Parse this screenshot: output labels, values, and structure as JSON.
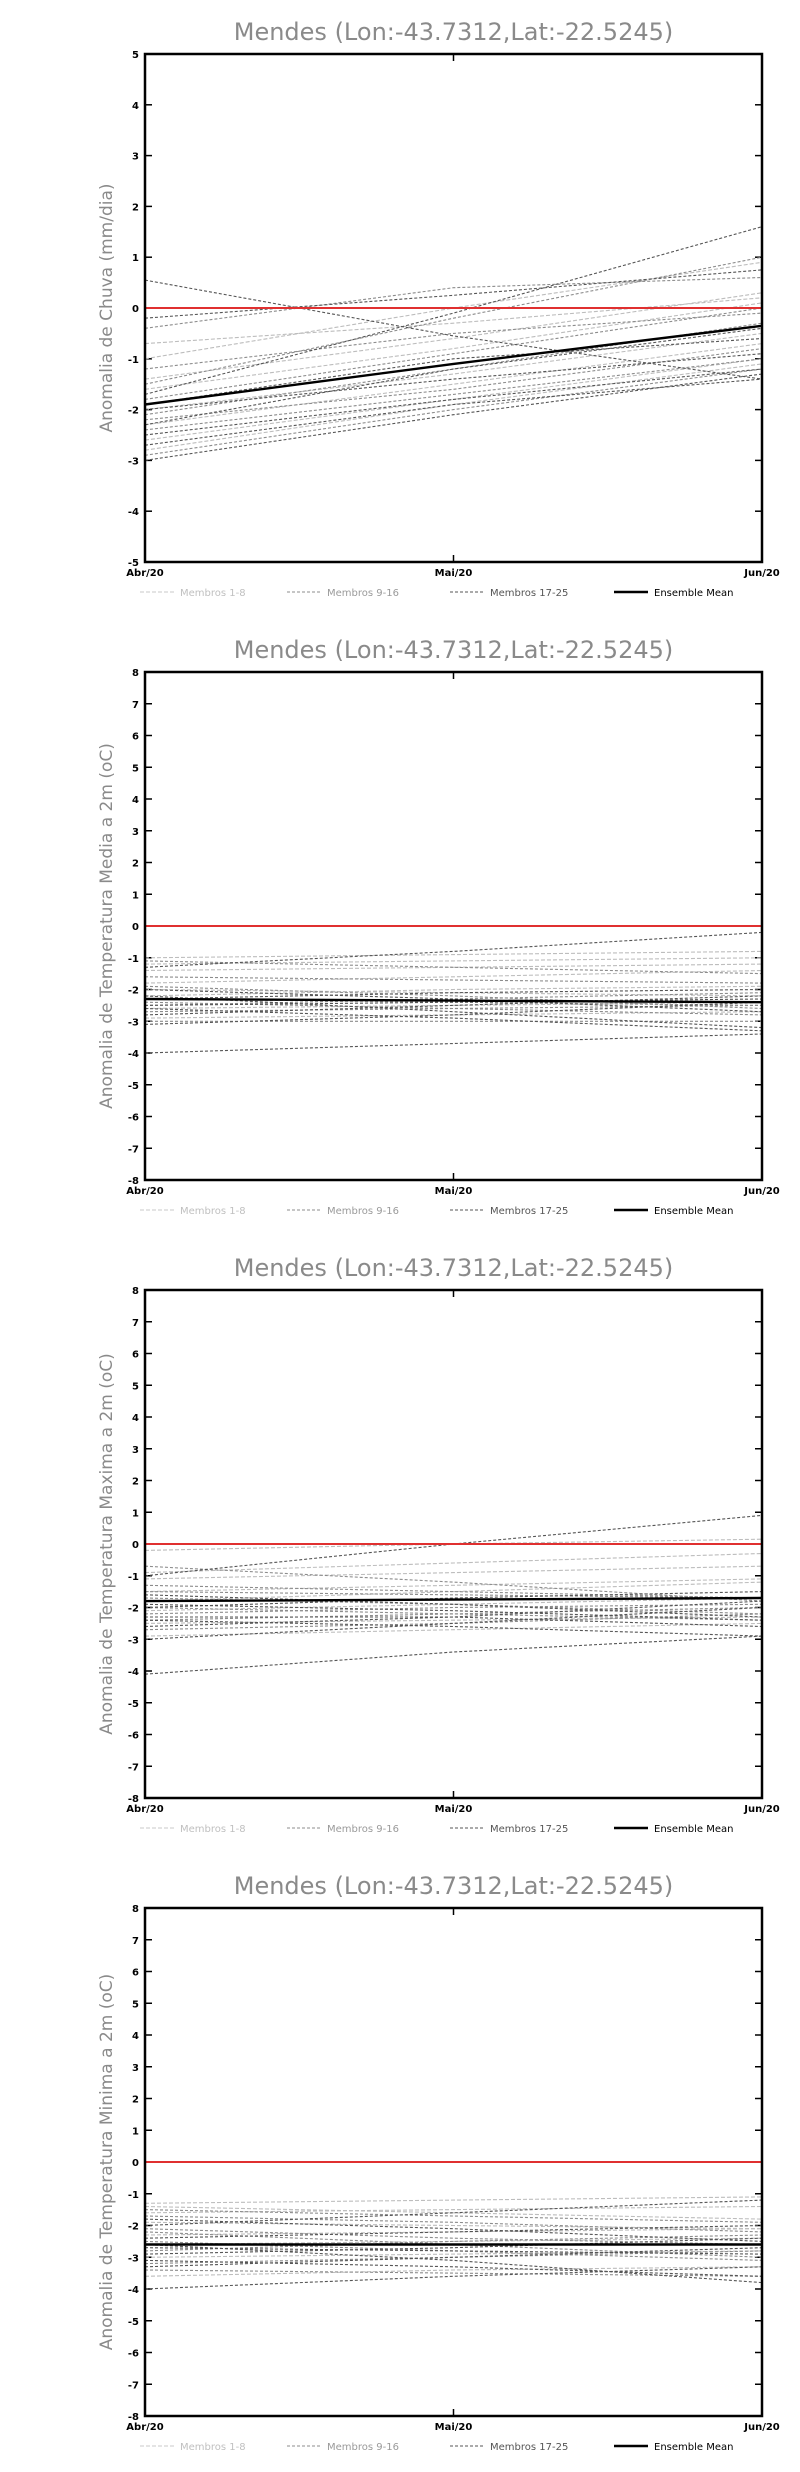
{
  "chart_data": [
    {
      "type": "line",
      "title": "Mendes (Lon:-43.7312,Lat:-22.5245)",
      "ylabel": "Anomalia de Chuva (mm/dia)",
      "xlabel": "",
      "categories": [
        "Abr/20",
        "Mai/20",
        "Jun/20"
      ],
      "ylim": [
        -5,
        5
      ],
      "yticks": [
        -5,
        -4,
        -3,
        -2,
        -1,
        0,
        1,
        2,
        3,
        4,
        5
      ],
      "ytick_labels": [
        "-5",
        "-4",
        "-3",
        "-2",
        "-1",
        "0",
        "1",
        "2",
        "3",
        "4",
        "5"
      ],
      "reference_line": 0,
      "reference_color": "#e03030",
      "legend": [
        "Membros 1-8",
        "Membros 9-16",
        "Membros 17-25",
        "Ensemble Mean"
      ],
      "legend_position": "bottom",
      "series": [
        {
          "values": [
            -1.4,
            -0.6,
            0.3
          ],
          "group": 1
        },
        {
          "values": [
            -0.7,
            -0.3,
            0.2
          ],
          "group": 1
        },
        {
          "values": [
            -2.0,
            -1.3,
            -0.5
          ],
          "group": 1
        },
        {
          "values": [
            -2.6,
            -1.8,
            -1.0
          ],
          "group": 1
        },
        {
          "values": [
            -1.0,
            0.0,
            0.9
          ],
          "group": 1
        },
        {
          "values": [
            -2.3,
            -1.5,
            -0.7
          ],
          "group": 1
        },
        {
          "values": [
            -1.6,
            -0.8,
            0.1
          ],
          "group": 1
        },
        {
          "values": [
            -2.8,
            -1.9,
            -1.1
          ],
          "group": 1
        },
        {
          "values": [
            -1.5,
            -0.2,
            1.0
          ],
          "group": 2
        },
        {
          "values": [
            -2.1,
            -1.2,
            -0.3
          ],
          "group": 2
        },
        {
          "values": [
            -0.4,
            0.4,
            0.6
          ],
          "group": 2
        },
        {
          "values": [
            -2.4,
            -1.7,
            -1.0
          ],
          "group": 2
        },
        {
          "values": [
            -1.8,
            -0.9,
            0.0
          ],
          "group": 2
        },
        {
          "values": [
            -2.9,
            -2.0,
            -1.2
          ],
          "group": 2
        },
        {
          "values": [
            -1.2,
            -0.5,
            -0.1
          ],
          "group": 2
        },
        {
          "values": [
            -2.2,
            -1.6,
            -0.8
          ],
          "group": 2
        },
        {
          "values": [
            -3.0,
            -2.1,
            -1.3
          ],
          "group": 3
        },
        {
          "values": [
            0.55,
            -0.55,
            -1.4
          ],
          "group": 3
        },
        {
          "values": [
            -1.7,
            -0.1,
            1.6
          ],
          "group": 3
        },
        {
          "values": [
            -2.5,
            -1.8,
            -1.2
          ],
          "group": 3
        },
        {
          "values": [
            -2.7,
            -1.9,
            -1.4
          ],
          "group": 3
        },
        {
          "values": [
            -1.9,
            -1.0,
            -0.6
          ],
          "group": 3
        },
        {
          "values": [
            -0.2,
            0.25,
            0.75
          ],
          "group": 3
        },
        {
          "values": [
            -2.0,
            -1.4,
            -0.9
          ],
          "group": 3
        },
        {
          "values": [
            -2.3,
            -1.2,
            -0.4
          ],
          "group": 3
        },
        {
          "name": "Ensemble Mean",
          "values": [
            -1.9,
            -1.1,
            -0.35
          ],
          "group": 4
        }
      ]
    },
    {
      "type": "line",
      "title": "Mendes (Lon:-43.7312,Lat:-22.5245)",
      "ylabel": "Anomalia de Temperatura Media a 2m (oC)",
      "xlabel": "",
      "categories": [
        "Abr/20",
        "Mai/20",
        "Jun/20"
      ],
      "ylim": [
        -8,
        8
      ],
      "yticks": [
        -8,
        -7,
        -6,
        -5,
        -4,
        -3,
        -2,
        -1,
        0,
        1,
        2,
        3,
        4,
        5,
        6,
        7,
        8
      ],
      "ytick_labels": [
        "-8",
        "-7",
        "-6",
        "-5",
        "-4",
        "-3",
        "-2",
        "-1",
        "0",
        "1",
        "2",
        "3",
        "4",
        "5",
        "6",
        "7",
        "8"
      ],
      "reference_line": 0,
      "reference_color": "#e03030",
      "legend": [
        "Membros 1-8",
        "Membros 9-16",
        "Membros 17-25",
        "Ensemble Mean"
      ],
      "legend_position": "bottom",
      "series": [
        {
          "values": [
            -1.0,
            -0.9,
            -0.8
          ],
          "group": 1
        },
        {
          "values": [
            -1.4,
            -1.3,
            -1.2
          ],
          "group": 1
        },
        {
          "values": [
            -2.0,
            -2.1,
            -2.2
          ],
          "group": 1
        },
        {
          "values": [
            -2.6,
            -2.5,
            -2.4
          ],
          "group": 1
        },
        {
          "values": [
            -1.8,
            -1.6,
            -1.4
          ],
          "group": 1
        },
        {
          "values": [
            -2.9,
            -2.8,
            -2.7
          ],
          "group": 1
        },
        {
          "values": [
            -2.2,
            -2.0,
            -1.9
          ],
          "group": 1
        },
        {
          "values": [
            -1.2,
            -1.1,
            -1.0
          ],
          "group": 1
        },
        {
          "values": [
            -2.3,
            -2.4,
            -2.5
          ],
          "group": 2
        },
        {
          "values": [
            -1.6,
            -1.7,
            -1.8
          ],
          "group": 2
        },
        {
          "values": [
            -2.7,
            -2.6,
            -2.5
          ],
          "group": 2
        },
        {
          "values": [
            -1.9,
            -2.2,
            -2.6
          ],
          "group": 2
        },
        {
          "values": [
            -2.5,
            -2.3,
            -2.1
          ],
          "group": 2
        },
        {
          "values": [
            -3.0,
            -3.0,
            -3.0
          ],
          "group": 2
        },
        {
          "values": [
            -1.1,
            -1.3,
            -1.5
          ],
          "group": 2
        },
        {
          "values": [
            -2.4,
            -2.6,
            -2.8
          ],
          "group": 2
        },
        {
          "values": [
            -4.0,
            -3.7,
            -3.4
          ],
          "group": 3
        },
        {
          "values": [
            -2.2,
            -2.7,
            -3.2
          ],
          "group": 3
        },
        {
          "values": [
            -1.3,
            -0.8,
            -0.2
          ],
          "group": 3
        },
        {
          "values": [
            -2.6,
            -2.9,
            -3.3
          ],
          "group": 3
        },
        {
          "values": [
            -2.3,
            -2.1,
            -2.0
          ],
          "group": 3
        },
        {
          "values": [
            -3.1,
            -2.8,
            -2.4
          ],
          "group": 3
        },
        {
          "values": [
            -2.0,
            -2.3,
            -2.7
          ],
          "group": 3
        },
        {
          "values": [
            -2.8,
            -2.5,
            -2.2
          ],
          "group": 3
        },
        {
          "values": [
            -2.5,
            -2.4,
            -2.3
          ],
          "group": 3
        },
        {
          "name": "Ensemble Mean",
          "values": [
            -2.3,
            -2.35,
            -2.4
          ],
          "group": 4
        }
      ]
    },
    {
      "type": "line",
      "title": "Mendes (Lon:-43.7312,Lat:-22.5245)",
      "ylabel": "Anomalia de Temperatura Maxima a 2m (oC)",
      "xlabel": "",
      "categories": [
        "Abr/20",
        "Mai/20",
        "Jun/20"
      ],
      "ylim": [
        -8,
        8
      ],
      "yticks": [
        -8,
        -7,
        -6,
        -5,
        -4,
        -3,
        -2,
        -1,
        0,
        1,
        2,
        3,
        4,
        5,
        6,
        7,
        8
      ],
      "ytick_labels": [
        "-8",
        "-7",
        "-6",
        "-5",
        "-4",
        "-3",
        "-2",
        "-1",
        "0",
        "1",
        "2",
        "3",
        "4",
        "5",
        "6",
        "7",
        "8"
      ],
      "reference_line": 0,
      "reference_color": "#e03030",
      "legend": [
        "Membros 1-8",
        "Membros 9-16",
        "Membros 17-25",
        "Ensemble Mean"
      ],
      "legend_position": "bottom",
      "series": [
        {
          "values": [
            -0.9,
            -0.6,
            -0.3
          ],
          "group": 1
        },
        {
          "values": [
            -1.5,
            -1.3,
            -1.1
          ],
          "group": 1
        },
        {
          "values": [
            -2.1,
            -1.9,
            -1.7
          ],
          "group": 1
        },
        {
          "values": [
            -0.2,
            0.0,
            0.15
          ],
          "group": 1
        },
        {
          "values": [
            -2.5,
            -2.4,
            -2.3
          ],
          "group": 1
        },
        {
          "values": [
            -1.8,
            -1.5,
            -1.2
          ],
          "group": 1
        },
        {
          "values": [
            -2.9,
            -2.7,
            -2.5
          ],
          "group": 1
        },
        {
          "values": [
            -1.1,
            -0.9,
            -0.7
          ],
          "group": 1
        },
        {
          "values": [
            -1.3,
            -1.5,
            -1.7
          ],
          "group": 2
        },
        {
          "values": [
            -2.4,
            -2.2,
            -2.0
          ],
          "group": 2
        },
        {
          "values": [
            -1.7,
            -1.9,
            -2.2
          ],
          "group": 2
        },
        {
          "values": [
            -0.7,
            -1.2,
            -1.8
          ],
          "group": 2
        },
        {
          "values": [
            -2.7,
            -2.5,
            -2.2
          ],
          "group": 2
        },
        {
          "values": [
            -2.0,
            -2.2,
            -2.4
          ],
          "group": 2
        },
        {
          "values": [
            -2.2,
            -2.0,
            -1.9
          ],
          "group": 2
        },
        {
          "values": [
            -1.5,
            -1.6,
            -1.7
          ],
          "group": 2
        },
        {
          "values": [
            -4.1,
            -3.4,
            -2.9
          ],
          "group": 3
        },
        {
          "values": [
            -1.0,
            0.0,
            0.9
          ],
          "group": 3
        },
        {
          "values": [
            -2.4,
            -2.6,
            -2.9
          ],
          "group": 3
        },
        {
          "values": [
            -1.6,
            -1.9,
            -2.3
          ],
          "group": 3
        },
        {
          "values": [
            -2.0,
            -1.7,
            -1.5
          ],
          "group": 3
        },
        {
          "values": [
            -3.0,
            -2.5,
            -2.0
          ],
          "group": 3
        },
        {
          "values": [
            -2.6,
            -2.3,
            -1.8
          ],
          "group": 3
        },
        {
          "values": [
            -1.9,
            -2.1,
            -2.4
          ],
          "group": 3
        },
        {
          "values": [
            -2.3,
            -2.3,
            -2.6
          ],
          "group": 3
        },
        {
          "name": "Ensemble Mean",
          "values": [
            -1.8,
            -1.75,
            -1.7
          ],
          "group": 4
        }
      ]
    },
    {
      "type": "line",
      "title": "Mendes (Lon:-43.7312,Lat:-22.5245)",
      "ylabel": "Anomalia de Temperatura Minima a 2m (oC)",
      "xlabel": "",
      "categories": [
        "Abr/20",
        "Mai/20",
        "Jun/20"
      ],
      "ylim": [
        -8,
        8
      ],
      "yticks": [
        -8,
        -7,
        -6,
        -5,
        -4,
        -3,
        -2,
        -1,
        0,
        1,
        2,
        3,
        4,
        5,
        6,
        7,
        8
      ],
      "ytick_labels": [
        "-8",
        "-7",
        "-6",
        "-5",
        "-4",
        "-3",
        "-2",
        "-1",
        "0",
        "1",
        "2",
        "3",
        "4",
        "5",
        "6",
        "7",
        "8"
      ],
      "reference_line": 0,
      "reference_color": "#e03030",
      "legend": [
        "Membros 1-8",
        "Membros 9-16",
        "Membros 17-25",
        "Ensemble Mean"
      ],
      "legend_position": "bottom",
      "series": [
        {
          "values": [
            -1.3,
            -1.2,
            -1.1
          ],
          "group": 1
        },
        {
          "values": [
            -1.6,
            -1.5,
            -1.4
          ],
          "group": 1
        },
        {
          "values": [
            -2.3,
            -2.2,
            -2.1
          ],
          "group": 1
        },
        {
          "values": [
            -3.0,
            -2.9,
            -2.8
          ],
          "group": 1
        },
        {
          "values": [
            -1.9,
            -2.0,
            -2.1
          ],
          "group": 1
        },
        {
          "values": [
            -3.6,
            -3.4,
            -3.3
          ],
          "group": 1
        },
        {
          "values": [
            -2.6,
            -2.5,
            -2.4
          ],
          "group": 1
        },
        {
          "values": [
            -1.4,
            -1.6,
            -1.8
          ],
          "group": 1
        },
        {
          "values": [
            -2.5,
            -2.8,
            -3.1
          ],
          "group": 2
        },
        {
          "values": [
            -1.7,
            -1.9,
            -2.2
          ],
          "group": 2
        },
        {
          "values": [
            -3.2,
            -3.0,
            -2.8
          ],
          "group": 2
        },
        {
          "values": [
            -2.1,
            -2.4,
            -2.6
          ],
          "group": 2
        },
        {
          "values": [
            -2.8,
            -2.5,
            -2.3
          ],
          "group": 2
        },
        {
          "values": [
            -3.4,
            -3.5,
            -3.6
          ],
          "group": 2
        },
        {
          "values": [
            -1.5,
            -1.7,
            -1.9
          ],
          "group": 2
        },
        {
          "values": [
            -2.2,
            -2.6,
            -3.0
          ],
          "group": 2
        },
        {
          "values": [
            -4.0,
            -3.6,
            -3.3
          ],
          "group": 3
        },
        {
          "values": [
            -2.0,
            -1.6,
            -1.2
          ],
          "group": 3
        },
        {
          "values": [
            -2.6,
            -3.1,
            -3.8
          ],
          "group": 3
        },
        {
          "values": [
            -2.9,
            -2.7,
            -2.4
          ],
          "group": 3
        },
        {
          "values": [
            -3.1,
            -3.3,
            -3.6
          ],
          "group": 3
        },
        {
          "values": [
            -2.4,
            -2.2,
            -2.0
          ],
          "group": 3
        },
        {
          "values": [
            -1.8,
            -2.1,
            -2.5
          ],
          "group": 3
        },
        {
          "values": [
            -3.3,
            -3.0,
            -2.7
          ],
          "group": 3
        },
        {
          "values": [
            -2.7,
            -2.8,
            -2.9
          ],
          "group": 3
        },
        {
          "name": "Ensemble Mean",
          "values": [
            -2.6,
            -2.6,
            -2.6
          ],
          "group": 4
        }
      ]
    }
  ]
}
